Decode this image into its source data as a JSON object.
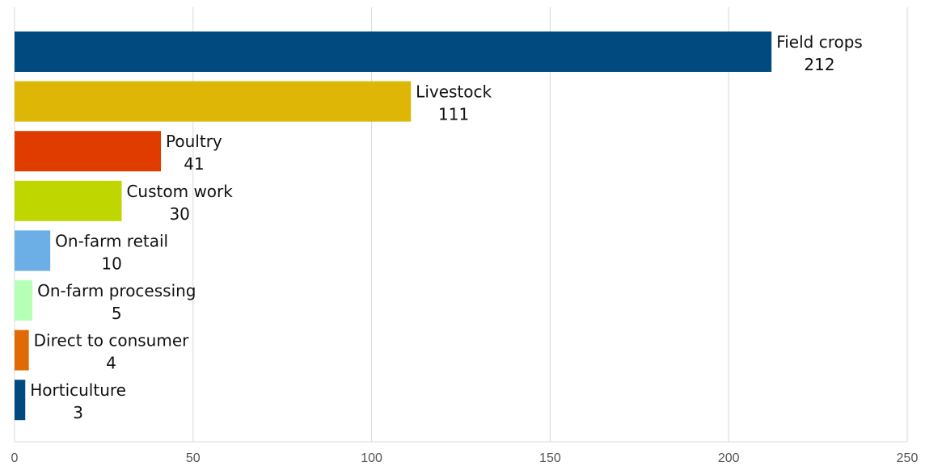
{
  "chart_data": {
    "type": "bar",
    "orientation": "horizontal",
    "title": "",
    "xlabel": "",
    "ylabel": "",
    "xlim": [
      0,
      250
    ],
    "xticks": [
      "0",
      "50",
      "100",
      "150",
      "200",
      "250"
    ],
    "grid": true,
    "legend": "none",
    "categories": [
      "Field crops",
      "Livestock",
      "Poultry",
      "Custom work",
      "On-farm retail",
      "On-farm processing",
      "Direct to consumer",
      "Horticulture"
    ],
    "values": [
      212,
      111,
      41,
      30,
      10,
      5,
      4,
      3
    ],
    "value_labels": [
      "212",
      "111",
      "41",
      "30",
      "10",
      "5",
      "4",
      "3"
    ],
    "colors": [
      "#004a80",
      "#deb606",
      "#e03c00",
      "#c0d600",
      "#6caee6",
      "#b6ffb6",
      "#e06a06",
      "#004a80"
    ]
  }
}
